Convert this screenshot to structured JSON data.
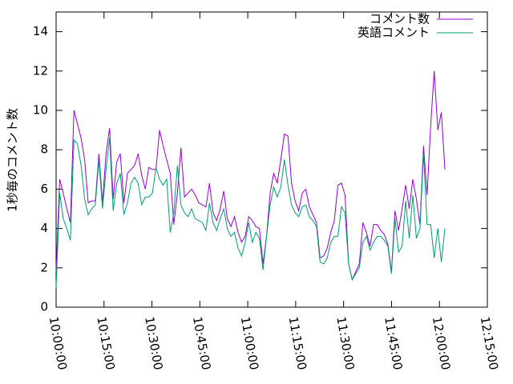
{
  "chart_data": {
    "type": "line",
    "ylabel": "1秒毎のコメント数",
    "x": [
      "10:00:00",
      "10:01:07",
      "10:02:14",
      "10:03:21",
      "10:04:28",
      "10:05:35",
      "10:06:42",
      "10:07:49",
      "10:08:56",
      "10:10:03",
      "10:11:10",
      "10:12:17",
      "10:13:24",
      "10:14:31",
      "10:15:38",
      "10:16:45",
      "10:17:52",
      "10:18:59",
      "10:20:06",
      "10:21:13",
      "10:22:20",
      "10:23:27",
      "10:24:34",
      "10:25:41",
      "10:26:48",
      "10:27:55",
      "10:29:02",
      "10:30:09",
      "10:31:16",
      "10:32:23",
      "10:33:30",
      "10:34:37",
      "10:35:44",
      "10:36:51",
      "10:37:58",
      "10:39:05",
      "10:40:12",
      "10:41:19",
      "10:42:26",
      "10:43:33",
      "10:44:40",
      "10:45:47",
      "10:46:54",
      "10:48:01",
      "10:49:08",
      "10:50:15",
      "10:51:22",
      "10:52:29",
      "10:53:36",
      "10:54:43",
      "10:55:50",
      "10:56:57",
      "10:58:04",
      "10:59:11",
      "11:00:18",
      "11:01:25",
      "11:02:32",
      "11:03:39",
      "11:04:46",
      "11:05:53",
      "11:07:00",
      "11:08:07",
      "11:09:14",
      "11:10:21",
      "11:11:28",
      "11:12:35",
      "11:13:42",
      "11:14:49",
      "11:15:56",
      "11:17:03",
      "11:18:10",
      "11:19:17",
      "11:20:24",
      "11:21:31",
      "11:22:38",
      "11:23:45",
      "11:24:52",
      "11:25:59",
      "11:27:06",
      "11:28:13",
      "11:29:20",
      "11:30:27",
      "11:31:34",
      "11:32:41",
      "11:33:48",
      "11:34:55",
      "11:36:02",
      "11:37:09",
      "11:38:16",
      "11:39:23",
      "11:40:30",
      "11:41:37",
      "11:42:44",
      "11:43:51",
      "11:44:58",
      "11:46:05",
      "11:47:12",
      "11:48:19",
      "11:49:26",
      "11:50:33",
      "11:51:40",
      "11:52:47",
      "11:53:54",
      "11:55:01",
      "11:56:08",
      "11:57:15",
      "11:58:22",
      "11:59:29",
      "12:00:36",
      "12:01:43"
    ],
    "series": [
      {
        "name": "コメント数",
        "color": "#9400d3",
        "values": [
          1.8,
          6.5,
          5.8,
          5.0,
          4.3,
          10.0,
          9.3,
          8.6,
          7.5,
          5.3,
          5.4,
          5.4,
          7.8,
          5.3,
          7.8,
          9.1,
          5.5,
          7.4,
          7.8,
          5.3,
          6.8,
          7.0,
          7.2,
          7.8,
          6.7,
          6.0,
          7.1,
          7.0,
          7.0,
          9.0,
          8.2,
          7.5,
          6.8,
          4.2,
          5.8,
          8.1,
          5.6,
          5.8,
          6.0,
          5.7,
          5.3,
          5.2,
          5.1,
          6.3,
          4.8,
          4.4,
          5.0,
          5.9,
          4.5,
          4.1,
          4.6,
          3.8,
          3.3,
          3.6,
          4.6,
          4.4,
          4.1,
          4.0,
          2.2,
          3.6,
          5.8,
          6.8,
          6.3,
          7.5,
          8.8,
          8.7,
          6.3,
          5.4,
          4.9,
          5.8,
          6.0,
          5.1,
          4.7,
          4.3,
          2.5,
          2.6,
          3.0,
          3.8,
          4.4,
          6.2,
          6.3,
          5.7,
          2.2,
          1.4,
          1.8,
          2.2,
          4.3,
          3.8,
          3.1,
          4.2,
          4.2,
          3.9,
          3.7,
          3.2,
          1.8,
          4.9,
          3.9,
          5.0,
          6.2,
          5.0,
          6.5,
          5.5,
          4.2,
          8.2,
          5.7,
          9.2,
          12.0,
          9.0,
          9.9,
          7.0
        ]
      },
      {
        "name": "英語コメント",
        "color": "#009e73",
        "values": [
          1.0,
          5.8,
          4.5,
          4.0,
          3.4,
          8.5,
          8.3,
          7.2,
          5.5,
          4.7,
          5.0,
          5.2,
          7.5,
          5.0,
          7.0,
          8.6,
          4.9,
          6.3,
          6.8,
          4.7,
          5.3,
          6.3,
          6.6,
          6.3,
          5.2,
          5.6,
          5.6,
          5.8,
          7.1,
          6.5,
          6.2,
          6.5,
          3.8,
          4.8,
          7.2,
          5.2,
          4.8,
          4.6,
          5.0,
          4.5,
          4.4,
          4.3,
          3.9,
          5.3,
          4.3,
          3.9,
          4.5,
          5.0,
          4.0,
          3.6,
          3.8,
          3.0,
          2.6,
          3.3,
          4.3,
          3.3,
          3.8,
          3.5,
          1.9,
          3.6,
          5.2,
          6.1,
          5.6,
          6.1,
          7.5,
          6.2,
          5.2,
          4.8,
          4.6,
          5.1,
          5.2,
          4.6,
          4.4,
          4.1,
          2.3,
          2.2,
          2.5,
          3.3,
          3.6,
          3.6,
          5.1,
          4.8,
          2.2,
          1.4,
          1.7,
          2.0,
          3.3,
          3.6,
          2.9,
          3.3,
          3.6,
          3.6,
          3.4,
          3.1,
          1.7,
          4.5,
          2.8,
          3.1,
          5.4,
          3.5,
          5.7,
          3.5,
          4.0,
          7.8,
          4.2,
          4.2,
          2.5,
          4.0,
          2.3,
          4.0
        ]
      }
    ],
    "xlim": [
      "10:00:00",
      "12:15:00"
    ],
    "xticks": [
      "10:00:00",
      "10:15:00",
      "10:30:00",
      "10:45:00",
      "11:00:00",
      "11:15:00",
      "11:30:00",
      "11:45:00",
      "12:00:00",
      "12:15:00"
    ],
    "ylim": [
      0,
      15
    ],
    "yticks": [
      0,
      2,
      4,
      6,
      8,
      10,
      12,
      14
    ],
    "legend": "top-right"
  }
}
